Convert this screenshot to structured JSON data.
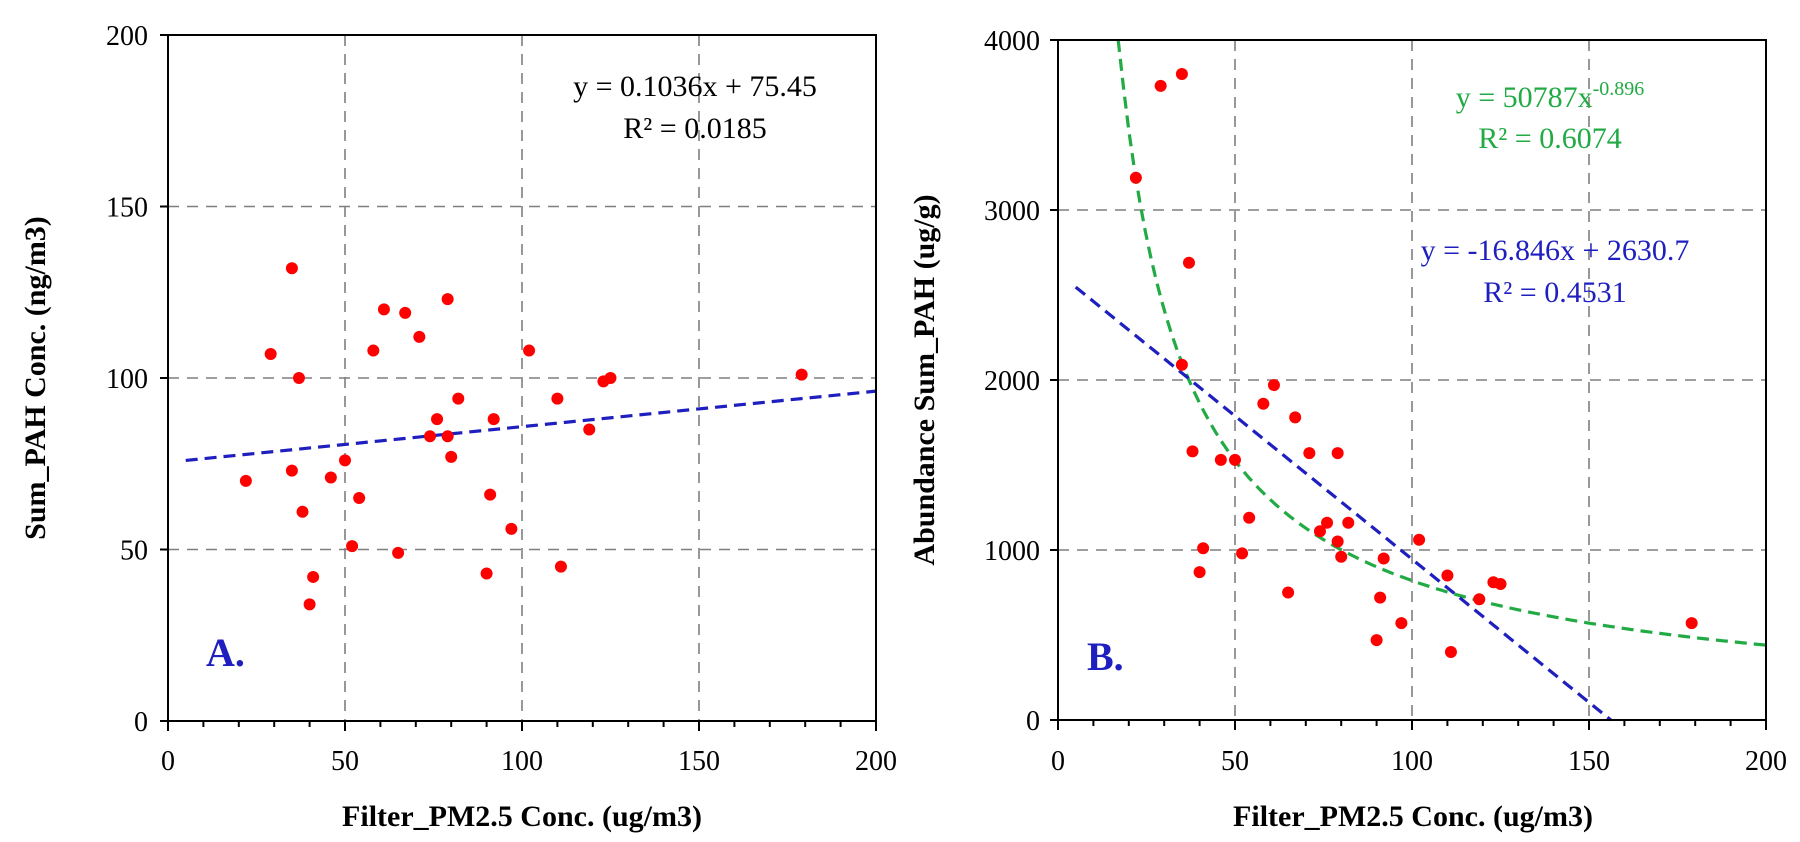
{
  "chart_data": [
    {
      "type": "scatter",
      "panel": "A.",
      "xlabel": "Filter_PM2.5 Conc. (ug/m3)",
      "ylabel": "Sum_PAH Conc. (ng/m3)",
      "xlim": [
        0,
        200
      ],
      "ylim": [
        0,
        200
      ],
      "xticks": [
        0,
        50,
        100,
        150,
        200
      ],
      "xtick_labels": [
        "0",
        "50",
        "100",
        "150",
        "200"
      ],
      "yticks": [
        0,
        50,
        100,
        150,
        200
      ],
      "ytick_labels": [
        "0",
        "50",
        "100",
        "150",
        "200"
      ],
      "grid": true,
      "colors": {
        "points": "#ff0000",
        "linear_trend": "#1f1fbf",
        "label": "#1f1fbf"
      },
      "points": [
        [
          22,
          70
        ],
        [
          29,
          107
        ],
        [
          35,
          132
        ],
        [
          35,
          73
        ],
        [
          37,
          100
        ],
        [
          38,
          61
        ],
        [
          40,
          34
        ],
        [
          41,
          42
        ],
        [
          46,
          71
        ],
        [
          50,
          76
        ],
        [
          52,
          51
        ],
        [
          54,
          65
        ],
        [
          58,
          108
        ],
        [
          61,
          120
        ],
        [
          65,
          49
        ],
        [
          67,
          119
        ],
        [
          71,
          112
        ],
        [
          74,
          83
        ],
        [
          76,
          88
        ],
        [
          79,
          123
        ],
        [
          79,
          83
        ],
        [
          80,
          77
        ],
        [
          82,
          94
        ],
        [
          90,
          43
        ],
        [
          91,
          66
        ],
        [
          92,
          88
        ],
        [
          97,
          56
        ],
        [
          102,
          108
        ],
        [
          110,
          94
        ],
        [
          111,
          45
        ],
        [
          119,
          85
        ],
        [
          123,
          99
        ],
        [
          125,
          100
        ],
        [
          179,
          101
        ]
      ],
      "trendlines": [
        {
          "kind": "linear",
          "slope": 0.1036,
          "intercept": 75.45,
          "x_range": [
            5,
            200
          ],
          "color": "#1f1fbf",
          "equation": "y = 0.1036x + 75.45",
          "r2": "R² = 0.0185"
        }
      ]
    },
    {
      "type": "scatter",
      "panel": "B.",
      "xlabel": "Filter_PM2.5 Conc. (ug/m3)",
      "ylabel": "Abundance Sum_PAH (ug/g)",
      "xlim": [
        0,
        200
      ],
      "ylim": [
        0,
        4000
      ],
      "xticks": [
        0,
        50,
        100,
        150,
        200
      ],
      "xtick_labels": [
        "0",
        "50",
        "100",
        "150",
        "200"
      ],
      "yticks": [
        0,
        1000,
        2000,
        3000,
        4000
      ],
      "ytick_labels": [
        "0",
        "1000",
        "2000",
        "3000",
        "4000"
      ],
      "grid": true,
      "colors": {
        "points": "#ff0000",
        "linear_trend": "#1f1fbf",
        "power_trend": "#22aa44",
        "label": "#1f1fbf"
      },
      "points": [
        [
          22,
          3190
        ],
        [
          29,
          3730
        ],
        [
          35,
          3800
        ],
        [
          35,
          2090
        ],
        [
          37,
          2690
        ],
        [
          38,
          1580
        ],
        [
          40,
          870
        ],
        [
          41,
          1010
        ],
        [
          46,
          1530
        ],
        [
          50,
          1530
        ],
        [
          52,
          980
        ],
        [
          54,
          1190
        ],
        [
          58,
          1860
        ],
        [
          61,
          1970
        ],
        [
          65,
          750
        ],
        [
          67,
          1780
        ],
        [
          71,
          1570
        ],
        [
          74,
          1110
        ],
        [
          76,
          1160
        ],
        [
          79,
          1050
        ],
        [
          79,
          1570
        ],
        [
          80,
          960
        ],
        [
          82,
          1160
        ],
        [
          90,
          470
        ],
        [
          91,
          720
        ],
        [
          92,
          950
        ],
        [
          97,
          570
        ],
        [
          102,
          1060
        ],
        [
          110,
          850
        ],
        [
          111,
          400
        ],
        [
          119,
          710
        ],
        [
          123,
          810
        ],
        [
          125,
          800
        ],
        [
          179,
          570
        ]
      ],
      "trendlines": [
        {
          "kind": "power",
          "coefficient": 50787,
          "exponent": -0.896,
          "x_range": [
            17,
            200
          ],
          "color": "#22aa44",
          "equation_base": "y = 50787x",
          "equation_exp": "-0.896",
          "r2": "R² = 0.6074"
        },
        {
          "kind": "linear",
          "slope": -16.846,
          "intercept": 2630.7,
          "x_range": [
            5,
            156.2
          ],
          "color": "#1f1fbf",
          "equation": "y = -16.846x + 2630.7",
          "r2": "R² = 0.4531"
        }
      ]
    }
  ]
}
